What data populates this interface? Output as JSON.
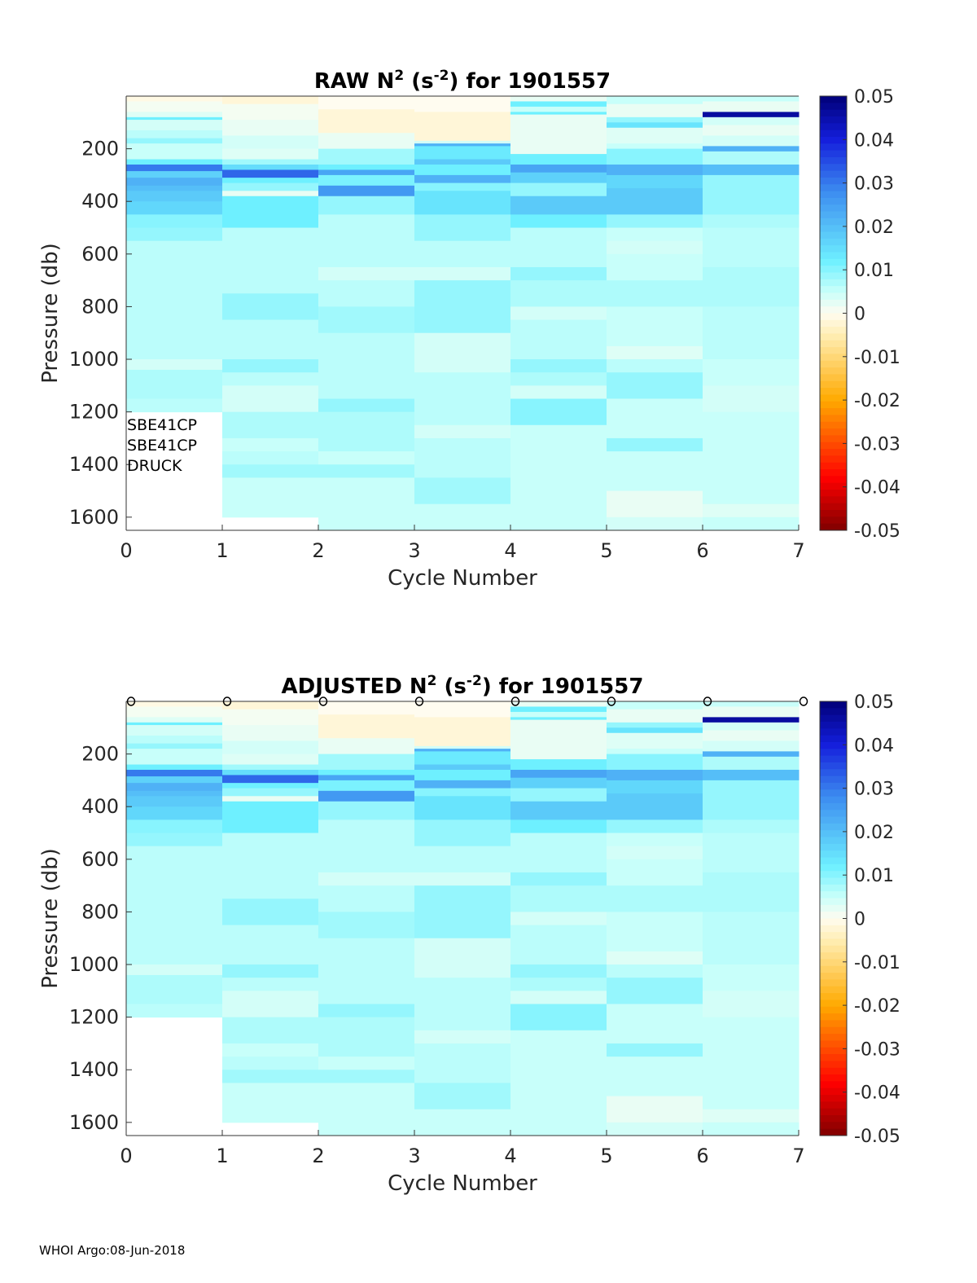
{
  "footer": "WHOI Argo:08-Jun-2018",
  "chart_data": [
    {
      "type": "heatmap",
      "panel": "raw",
      "title": {
        "prefix": "RAW N",
        "sup1": "2",
        "mid": " (s",
        "sup2": "-2",
        "suffix": ") for 1901557"
      },
      "xlabel": "Cycle Number",
      "ylabel": "Pressure (db)",
      "xlim": [
        0,
        7
      ],
      "ylim": [
        1650,
        0
      ],
      "xticks": [
        "0",
        "1",
        "2",
        "3",
        "4",
        "5",
        "6",
        "7"
      ],
      "yticks": [
        "200",
        "400",
        "600",
        "800",
        "1000",
        "1200",
        "1400",
        "1600"
      ],
      "colorbar": {
        "min": -0.05,
        "max": 0.05,
        "ticks": [
          "0.05",
          "0.04",
          "0.03",
          "0.02",
          "0.01",
          "0",
          "-0.01",
          "-0.02",
          "-0.03",
          "-0.04",
          "-0.05"
        ]
      },
      "sensor_labels": [
        "SBE41CP",
        "SBE41CP",
        "DRUCK"
      ],
      "show_markers": false
    },
    {
      "type": "heatmap",
      "panel": "adjusted",
      "title": {
        "prefix": "ADJUSTED N",
        "sup1": "2",
        "mid": " (s",
        "sup2": "-2",
        "suffix": ") for 1901557"
      },
      "xlabel": "Cycle Number",
      "ylabel": "Pressure (db)",
      "xlim": [
        0,
        7
      ],
      "ylim": [
        1650,
        0
      ],
      "xticks": [
        "0",
        "1",
        "2",
        "3",
        "4",
        "5",
        "6",
        "7"
      ],
      "yticks": [
        "200",
        "400",
        "600",
        "800",
        "1000",
        "1200",
        "1400",
        "1600"
      ],
      "colorbar": {
        "min": -0.05,
        "max": 0.05,
        "ticks": [
          "0.05",
          "0.04",
          "0.03",
          "0.02",
          "0.01",
          "0",
          "-0.01",
          "-0.02",
          "-0.03",
          "-0.04",
          "-0.05"
        ]
      },
      "sensor_labels": [],
      "show_markers": true,
      "marker_symbol": "o"
    }
  ],
  "profiles": [
    {
      "cycle": 0,
      "max_pressure": 1200,
      "bins": [
        [
          0,
          20,
          -0.001
        ],
        [
          20,
          60,
          0.001
        ],
        [
          60,
          80,
          0.003
        ],
        [
          80,
          90,
          0.012
        ],
        [
          90,
          130,
          0.004
        ],
        [
          130,
          160,
          0.006
        ],
        [
          160,
          180,
          0.009
        ],
        [
          180,
          240,
          0.005
        ],
        [
          240,
          260,
          0.012
        ],
        [
          260,
          285,
          0.03
        ],
        [
          285,
          310,
          0.017
        ],
        [
          310,
          340,
          0.022
        ],
        [
          340,
          360,
          0.02
        ],
        [
          360,
          400,
          0.018
        ],
        [
          400,
          450,
          0.016
        ],
        [
          450,
          500,
          0.01
        ],
        [
          500,
          550,
          0.009
        ],
        [
          550,
          1000,
          0.006
        ],
        [
          1000,
          1040,
          0.004
        ],
        [
          1040,
          1150,
          0.007
        ],
        [
          1150,
          1200,
          0.006
        ]
      ]
    },
    {
      "cycle": 1,
      "max_pressure": 1600,
      "bins": [
        [
          0,
          30,
          -0.002
        ],
        [
          30,
          90,
          0.001
        ],
        [
          90,
          150,
          0.002
        ],
        [
          150,
          200,
          0.004
        ],
        [
          200,
          240,
          0.003
        ],
        [
          240,
          260,
          0.008
        ],
        [
          260,
          280,
          0.015
        ],
        [
          280,
          310,
          0.032
        ],
        [
          310,
          330,
          0.012
        ],
        [
          330,
          360,
          0.009
        ],
        [
          360,
          380,
          0.002
        ],
        [
          380,
          500,
          0.012
        ],
        [
          500,
          750,
          0.006
        ],
        [
          750,
          850,
          0.009
        ],
        [
          850,
          1000,
          0.006
        ],
        [
          1000,
          1050,
          0.009
        ],
        [
          1050,
          1100,
          0.006
        ],
        [
          1100,
          1200,
          0.004
        ],
        [
          1200,
          1300,
          0.007
        ],
        [
          1300,
          1350,
          0.005
        ],
        [
          1350,
          1400,
          0.006
        ],
        [
          1400,
          1450,
          0.008
        ],
        [
          1450,
          1600,
          0.005
        ]
      ]
    },
    {
      "cycle": 2,
      "max_pressure": 1650,
      "bins": [
        [
          0,
          50,
          0.0
        ],
        [
          50,
          140,
          -0.002
        ],
        [
          140,
          200,
          0.002
        ],
        [
          200,
          260,
          0.008
        ],
        [
          260,
          280,
          0.012
        ],
        [
          280,
          300,
          0.024
        ],
        [
          300,
          340,
          0.011
        ],
        [
          340,
          380,
          0.026
        ],
        [
          380,
          450,
          0.009
        ],
        [
          450,
          650,
          0.006
        ],
        [
          650,
          700,
          0.004
        ],
        [
          700,
          800,
          0.006
        ],
        [
          800,
          900,
          0.008
        ],
        [
          900,
          1150,
          0.006
        ],
        [
          1150,
          1200,
          0.009
        ],
        [
          1200,
          1350,
          0.007
        ],
        [
          1350,
          1400,
          0.005
        ],
        [
          1400,
          1450,
          0.008
        ],
        [
          1450,
          1650,
          0.005
        ]
      ]
    },
    {
      "cycle": 3,
      "max_pressure": 1650,
      "bins": [
        [
          0,
          60,
          0.0
        ],
        [
          60,
          170,
          -0.002
        ],
        [
          170,
          180,
          0.004
        ],
        [
          180,
          190,
          0.022
        ],
        [
          190,
          240,
          0.013
        ],
        [
          240,
          260,
          0.018
        ],
        [
          260,
          300,
          0.012
        ],
        [
          300,
          330,
          0.022
        ],
        [
          330,
          360,
          0.01
        ],
        [
          360,
          450,
          0.014
        ],
        [
          450,
          550,
          0.009
        ],
        [
          550,
          650,
          0.006
        ],
        [
          650,
          700,
          0.004
        ],
        [
          700,
          900,
          0.009
        ],
        [
          900,
          1050,
          0.004
        ],
        [
          1050,
          1250,
          0.006
        ],
        [
          1250,
          1300,
          0.004
        ],
        [
          1300,
          1450,
          0.006
        ],
        [
          1450,
          1550,
          0.008
        ],
        [
          1550,
          1650,
          0.005
        ]
      ]
    },
    {
      "cycle": 4,
      "max_pressure": 1650,
      "bins": [
        [
          0,
          20,
          0.002
        ],
        [
          20,
          40,
          0.012
        ],
        [
          40,
          60,
          0.005
        ],
        [
          60,
          70,
          0.012
        ],
        [
          70,
          220,
          0.002
        ],
        [
          220,
          260,
          0.012
        ],
        [
          260,
          290,
          0.024
        ],
        [
          290,
          330,
          0.017
        ],
        [
          330,
          380,
          0.009
        ],
        [
          380,
          450,
          0.018
        ],
        [
          450,
          500,
          0.012
        ],
        [
          500,
          650,
          0.006
        ],
        [
          650,
          700,
          0.009
        ],
        [
          700,
          800,
          0.007
        ],
        [
          800,
          850,
          0.004
        ],
        [
          850,
          1000,
          0.006
        ],
        [
          1000,
          1050,
          0.009
        ],
        [
          1050,
          1100,
          0.007
        ],
        [
          1100,
          1150,
          0.004
        ],
        [
          1150,
          1250,
          0.01
        ],
        [
          1250,
          1650,
          0.005
        ]
      ]
    },
    {
      "cycle": 5,
      "max_pressure": 1650,
      "bins": [
        [
          0,
          30,
          0.005
        ],
        [
          30,
          80,
          0.002
        ],
        [
          80,
          100,
          0.009
        ],
        [
          100,
          120,
          0.014
        ],
        [
          120,
          180,
          0.003
        ],
        [
          180,
          200,
          0.005
        ],
        [
          200,
          260,
          0.01
        ],
        [
          260,
          300,
          0.022
        ],
        [
          300,
          350,
          0.016
        ],
        [
          350,
          450,
          0.018
        ],
        [
          450,
          500,
          0.009
        ],
        [
          500,
          550,
          0.005
        ],
        [
          550,
          600,
          0.004
        ],
        [
          600,
          700,
          0.005
        ],
        [
          700,
          800,
          0.007
        ],
        [
          800,
          950,
          0.005
        ],
        [
          950,
          1000,
          0.003
        ],
        [
          1000,
          1050,
          0.006
        ],
        [
          1050,
          1150,
          0.009
        ],
        [
          1150,
          1300,
          0.005
        ],
        [
          1300,
          1350,
          0.009
        ],
        [
          1350,
          1500,
          0.005
        ],
        [
          1500,
          1600,
          0.002
        ],
        [
          1600,
          1650,
          0.004
        ]
      ]
    },
    {
      "cycle": 6,
      "max_pressure": 1650,
      "bins": [
        [
          0,
          20,
          0.005
        ],
        [
          20,
          60,
          0.002
        ],
        [
          60,
          80,
          0.046
        ],
        [
          80,
          110,
          0.004
        ],
        [
          110,
          150,
          0.002
        ],
        [
          150,
          190,
          0.004
        ],
        [
          190,
          210,
          0.022
        ],
        [
          210,
          260,
          0.007
        ],
        [
          260,
          300,
          0.02
        ],
        [
          300,
          450,
          0.009
        ],
        [
          450,
          500,
          0.007
        ],
        [
          500,
          650,
          0.006
        ],
        [
          650,
          800,
          0.007
        ],
        [
          800,
          1000,
          0.006
        ],
        [
          1000,
          1100,
          0.005
        ],
        [
          1100,
          1200,
          0.004
        ],
        [
          1200,
          1550,
          0.005
        ],
        [
          1550,
          1600,
          0.003
        ],
        [
          1600,
          1650,
          0.005
        ]
      ]
    }
  ]
}
